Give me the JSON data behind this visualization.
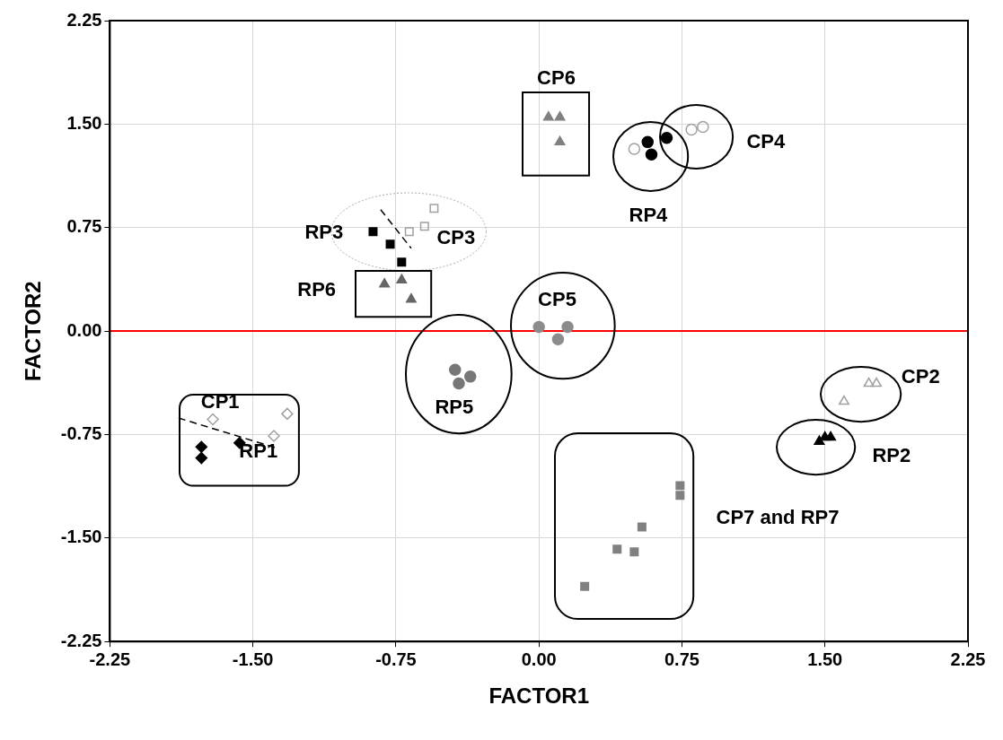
{
  "chart_data": {
    "type": "scatter",
    "xlabel": "FACTOR1",
    "ylabel": "FACTOR2",
    "xlim": [
      -2.25,
      2.25
    ],
    "ylim": [
      -2.25,
      2.25
    ],
    "xticks": [
      -2.25,
      {
        "value": -1.5,
        "label": "-1.50"
      },
      -0.75,
      {
        "value": 0,
        "label": "0.00"
      },
      0.75,
      {
        "value": 1.5,
        "label": "1.50"
      },
      2.25
    ],
    "yticks": [
      -2.25,
      {
        "value": -1.5,
        "label": "-1.50"
      },
      -0.75,
      {
        "value": 0,
        "label": "0.00"
      },
      0.75,
      {
        "value": 1.5,
        "label": "1.50"
      },
      2.25
    ],
    "grid": true,
    "legend": false,
    "series": [
      {
        "color": "#000000",
        "marker": "diamond",
        "x": [
          -1.77,
          -1.77,
          -1.57
        ],
        "values": [
          -0.84,
          -0.92,
          -0.81
        ]
      },
      {
        "color": "#a0a0a0",
        "marker": "diamond",
        "x": [
          -1.71,
          -1.39,
          -1.32
        ],
        "values": [
          -0.64,
          -0.76,
          -0.6
        ]
      },
      {
        "type": "line",
        "color": "#000000",
        "marker": "none",
        "line_style": "dashed",
        "x": [
          -1.89,
          -1.37
        ],
        "values": [
          -0.63,
          -0.85
        ]
      },
      {
        "color": "#000000",
        "marker": "square",
        "x": [
          -0.87,
          -0.78,
          -0.72
        ],
        "values": [
          0.72,
          0.63,
          0.5
        ]
      },
      {
        "color": "#a0a0a0",
        "marker": "square",
        "x": [
          -0.68,
          -0.6,
          -0.55
        ],
        "values": [
          0.72,
          0.76,
          0.89
        ]
      },
      {
        "type": "line",
        "color": "#000000",
        "marker": "none",
        "line_style": "dashed",
        "x": [
          -0.83,
          -0.67
        ],
        "values": [
          0.88,
          0.6
        ]
      },
      {
        "color": "#666666",
        "marker": "triangle",
        "x": [
          -0.81,
          -0.72,
          -0.67
        ],
        "values": [
          0.34,
          0.37,
          0.23
        ]
      },
      {
        "color": "#808080",
        "marker": "triangle",
        "x": [
          0.05,
          0.11,
          0.11
        ],
        "values": [
          1.55,
          1.55,
          1.37
        ]
      },
      {
        "color": "#000000",
        "marker": "circle",
        "x": [
          0.57,
          0.59,
          0.67
        ],
        "values": [
          1.37,
          1.28,
          1.4
        ]
      },
      {
        "color": "#a0a0a0",
        "marker": "circle",
        "x": [
          0.5,
          0.8,
          0.86
        ],
        "values": [
          1.32,
          1.46,
          1.48
        ]
      },
      {
        "color": "#777777",
        "marker": "circle",
        "x": [
          -0.44,
          -0.36,
          -0.42
        ],
        "values": [
          -0.28,
          -0.33,
          -0.38
        ]
      },
      {
        "color": "#8c8c8c",
        "marker": "circle",
        "x": [
          0.0,
          0.15,
          0.1
        ],
        "values": [
          0.03,
          0.03,
          -0.06
        ]
      },
      {
        "color": "#a0a0a0",
        "marker": "triangle",
        "x": [
          1.6,
          1.73,
          1.77
        ],
        "values": [
          -0.51,
          -0.38,
          -0.38
        ]
      },
      {
        "color": "#000000",
        "marker": "triangle",
        "x": [
          1.47,
          1.53,
          1.5
        ],
        "values": [
          -0.8,
          -0.77,
          -0.77
        ]
      },
      {
        "color": "#808080",
        "marker": "square",
        "x": [
          0.74,
          0.74,
          0.54,
          0.41,
          0.5,
          0.24
        ],
        "values": [
          -1.12,
          -1.19,
          -1.42,
          -1.58,
          -1.6,
          -1.85
        ]
      }
    ],
    "ref_lines": [
      {
        "axis": "y",
        "value": 0,
        "color": "#ff0000"
      }
    ],
    "annotations": [
      "CP6",
      "CP4",
      "RP4",
      "RP3",
      "CP3",
      "RP6",
      "CP5",
      "CP2",
      "RP5",
      "CP1",
      "RP1",
      "RP2",
      "CP7 and RP7"
    ]
  }
}
